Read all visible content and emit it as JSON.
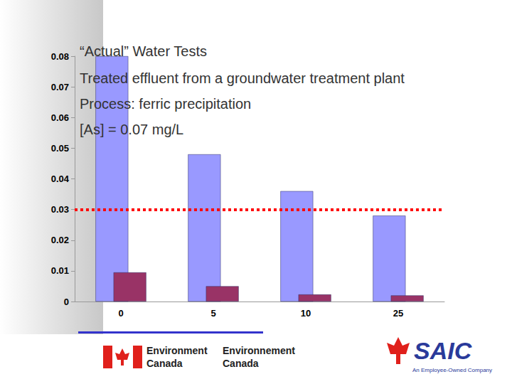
{
  "chart_data": {
    "type": "bar",
    "title": "“Actual” Water Tests",
    "subtitle": [
      "Treated effluent from a groundwater treatment plant",
      "Process: ferric precipitation",
      "[As] = 0.07 mg/L"
    ],
    "categories": [
      "0",
      "5",
      "10",
      "25"
    ],
    "series": [
      {
        "color": "#9999ff",
        "values": [
          0.08,
          0.048,
          0.036,
          0.028
        ]
      },
      {
        "color": "#993366",
        "values": [
          0.0095,
          0.005,
          0.0023,
          0.002
        ]
      }
    ],
    "reference_line": {
      "value": 0.026,
      "color": "#ff0000",
      "line_style": "dotted"
    },
    "ylim": [
      0,
      0.08
    ],
    "yticks": [
      0,
      0.01,
      0.02,
      0.03,
      0.04,
      0.05,
      0.06,
      0.07,
      0.08
    ],
    "grid": false,
    "annotations": [
      "Environment\nCanada",
      "Environnement\nCanada",
      "SAIC",
      "An Employee-Owned Company"
    ]
  }
}
